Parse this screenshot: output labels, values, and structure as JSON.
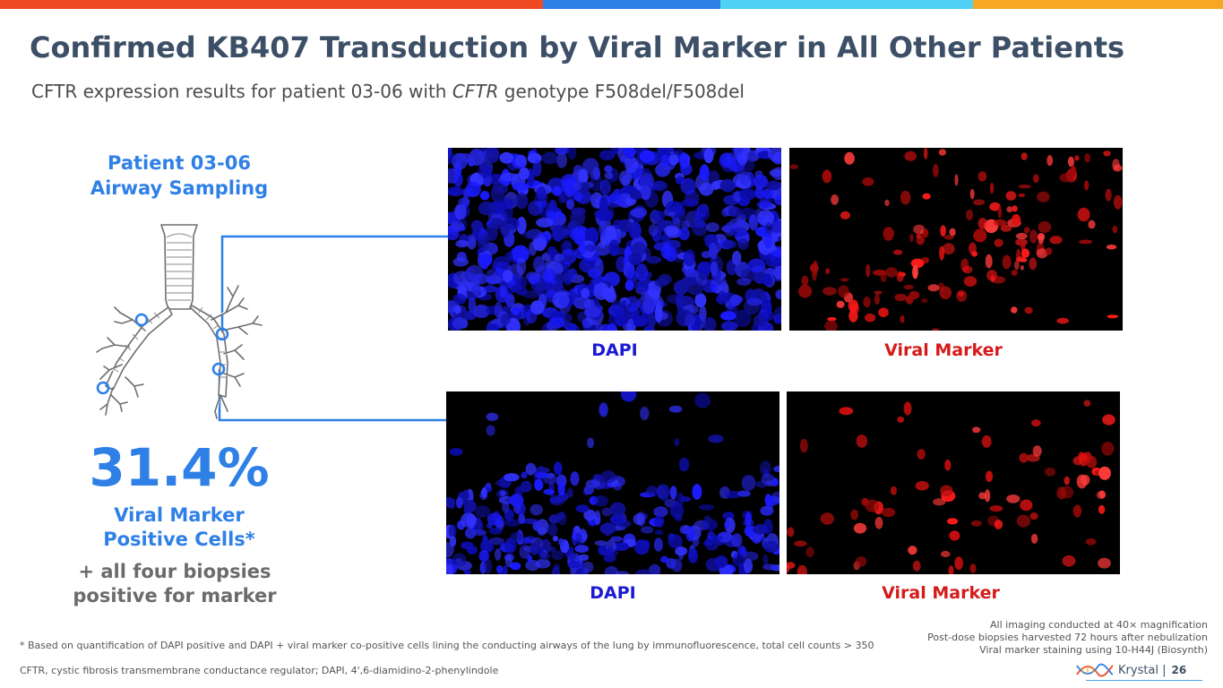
{
  "top_bar_colors": [
    "#f04a23",
    "#2f80e6",
    "#4fd0f5",
    "#f7a823"
  ],
  "title": "Confirmed KB407 Transduction by Viral Marker in All Other Patients",
  "subtitle": {
    "prefix": "CFTR expression results for patient 03-06 with ",
    "italic": "CFTR",
    "suffix": " genotype F508del/F508del"
  },
  "patient": {
    "line1": "Patient 03-06",
    "line2": "Airway Sampling"
  },
  "lung_icon": "lungs-airway-icon",
  "percent": "31.4%",
  "positive_label": {
    "line1": "Viral Marker",
    "line2": "Positive Cells*"
  },
  "biopsy_note": {
    "line1": "+ all four biopsies",
    "line2": "positive for marker"
  },
  "panels": {
    "row1_left_label": "DAPI",
    "row1_right_label": "Viral Marker",
    "row2_left_label": "DAPI",
    "row2_right_label": "Viral Marker"
  },
  "colors": {
    "title": "#3d4f66",
    "accent_blue": "#2f80e6",
    "dapi_label": "#1a1ad6",
    "viral_label": "#d61a1a"
  },
  "footnotes": {
    "asterisk": "* Based on quantification of DAPI positive and DAPI + viral marker co-positive cells lining the conducting airways of the lung by immunofluorescence, total cell counts > 350",
    "abbreviations": "CFTR, cystic fibrosis transmembrane conductance regulator; DAPI, 4',6-diamidino-2-phenylindole"
  },
  "imaging_notes": [
    "All imaging conducted at 40× magnification",
    "Post-dose biopsies harvested 72 hours after nebulization",
    "Viral marker staining using 10-H44J (Biosynth)"
  ],
  "brand": {
    "name": "Krystal |",
    "page": "26",
    "logo_icon": "dna-helix-logo-icon"
  }
}
